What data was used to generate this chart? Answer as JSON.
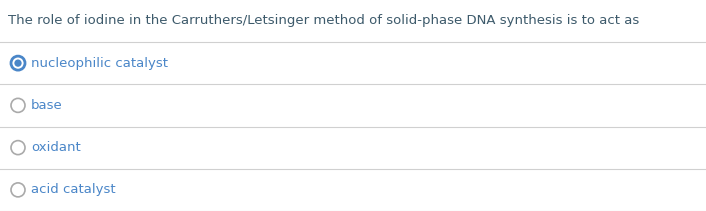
{
  "question": "The role of iodine in the Carruthers/Letsinger method of solid-phase DNA synthesis is to act as",
  "options": [
    "nucleophilic catalyst",
    "base",
    "oxidant",
    "acid catalyst"
  ],
  "selected_index": 0,
  "question_color": "#3d5a6b",
  "option_color": "#4a86c8",
  "line_color": "#d0d0d0",
  "bg_color": "#ffffff",
  "selected_circle_fill": "#ffffff",
  "selected_circle_edge": "#4a86c8",
  "selected_dot_color": "#4a86c8",
  "unselected_circle_fill": "#ffffff",
  "unselected_circle_edge": "#aaaaaa",
  "question_fontsize": 9.5,
  "option_fontsize": 9.5
}
